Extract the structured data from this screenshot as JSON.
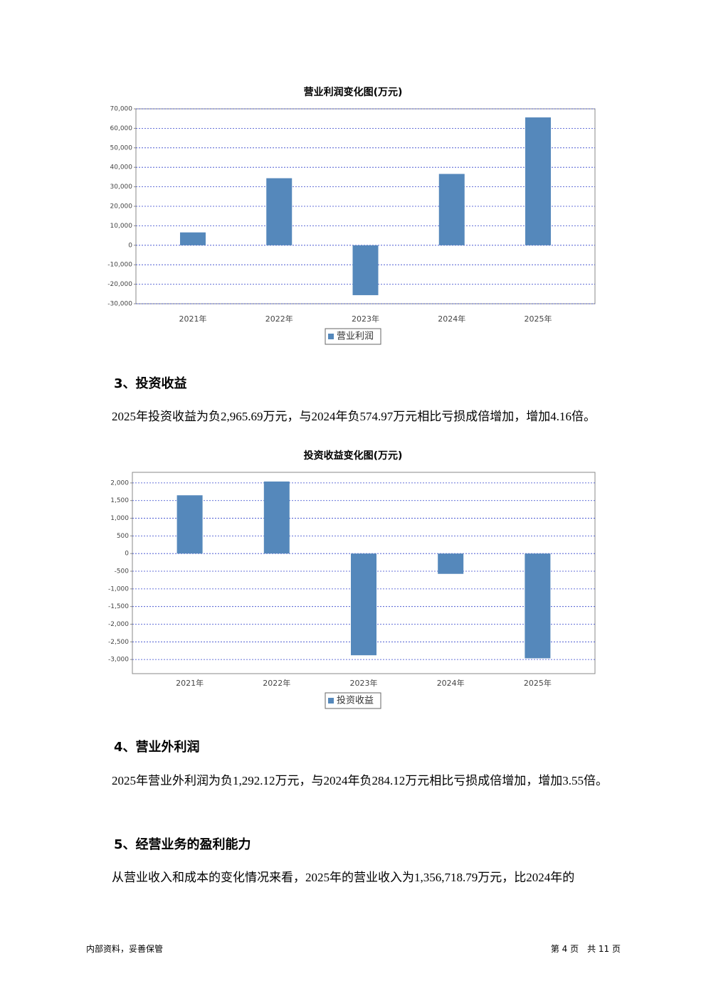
{
  "chart_data": [
    {
      "type": "bar",
      "title": "营业利润变化图(万元)",
      "categories": [
        "2021年",
        "2022年",
        "2023年",
        "2024年",
        "2025年"
      ],
      "series": [
        {
          "name": "营业利润",
          "color": "#5588bb",
          "values": [
            6600,
            34400,
            -25600,
            36600,
            65600
          ]
        }
      ],
      "ylim": [
        -30000,
        70000
      ],
      "yticks": [
        {
          "value": -30000,
          "label": "-30,000"
        },
        {
          "value": -20000,
          "label": "-20,000"
        },
        {
          "value": -10000,
          "label": "-10,000"
        },
        0,
        {
          "value": 10000,
          "label": "10,000"
        },
        {
          "value": 20000,
          "label": "20,000"
        },
        {
          "value": 30000,
          "label": "30,000"
        },
        {
          "value": 40000,
          "label": "40,000"
        },
        {
          "value": 50000,
          "label": "50,000"
        },
        {
          "value": 60000,
          "label": "60,000"
        },
        {
          "value": 70000,
          "label": "70,000"
        }
      ],
      "grid": true
    },
    {
      "type": "bar",
      "title": "投资收益变化图(万元)",
      "categories": [
        "2021年",
        "2022年",
        "2023年",
        "2024年",
        "2025年"
      ],
      "series": [
        {
          "name": "投资收益",
          "color": "#5588bb",
          "values": [
            1650,
            2040,
            -2880,
            -574.97,
            -2965.69
          ]
        }
      ],
      "ylim": [
        -3400,
        2300
      ],
      "yticks": [
        {
          "value": -3000,
          "label": "-3,000"
        },
        {
          "value": -2500,
          "label": "-2,500"
        },
        {
          "value": -2000,
          "label": "-2,000"
        },
        {
          "value": -1500,
          "label": "-1,500"
        },
        {
          "value": -1000,
          "label": "-1,000"
        },
        -500,
        0,
        500,
        {
          "value": 1000,
          "label": "1,000"
        },
        {
          "value": 1500,
          "label": "1,500"
        },
        {
          "value": 2000,
          "label": "2,000"
        }
      ],
      "grid": true
    }
  ],
  "sections": [
    {
      "heading": "3、投资收益",
      "paragraph": "2025年投资收益为负2,965.69万元，与2024年负574.97万元相比亏损成倍增加，增加4.16倍。"
    },
    {
      "heading": "4、营业外利润",
      "paragraph": "2025年营业外利润为负1,292.12万元，与2024年负284.12万元相比亏损成倍增加，增加3.55倍。"
    },
    {
      "heading": "5、经营业务的盈利能力",
      "paragraph": "从营业收入和成本的变化情况来看，2025年的营业收入为1,356,718.79万元，比2024年的"
    }
  ],
  "footer": {
    "left": "内部资料，妥善保管",
    "right": "第 4 页　共 11 页"
  }
}
